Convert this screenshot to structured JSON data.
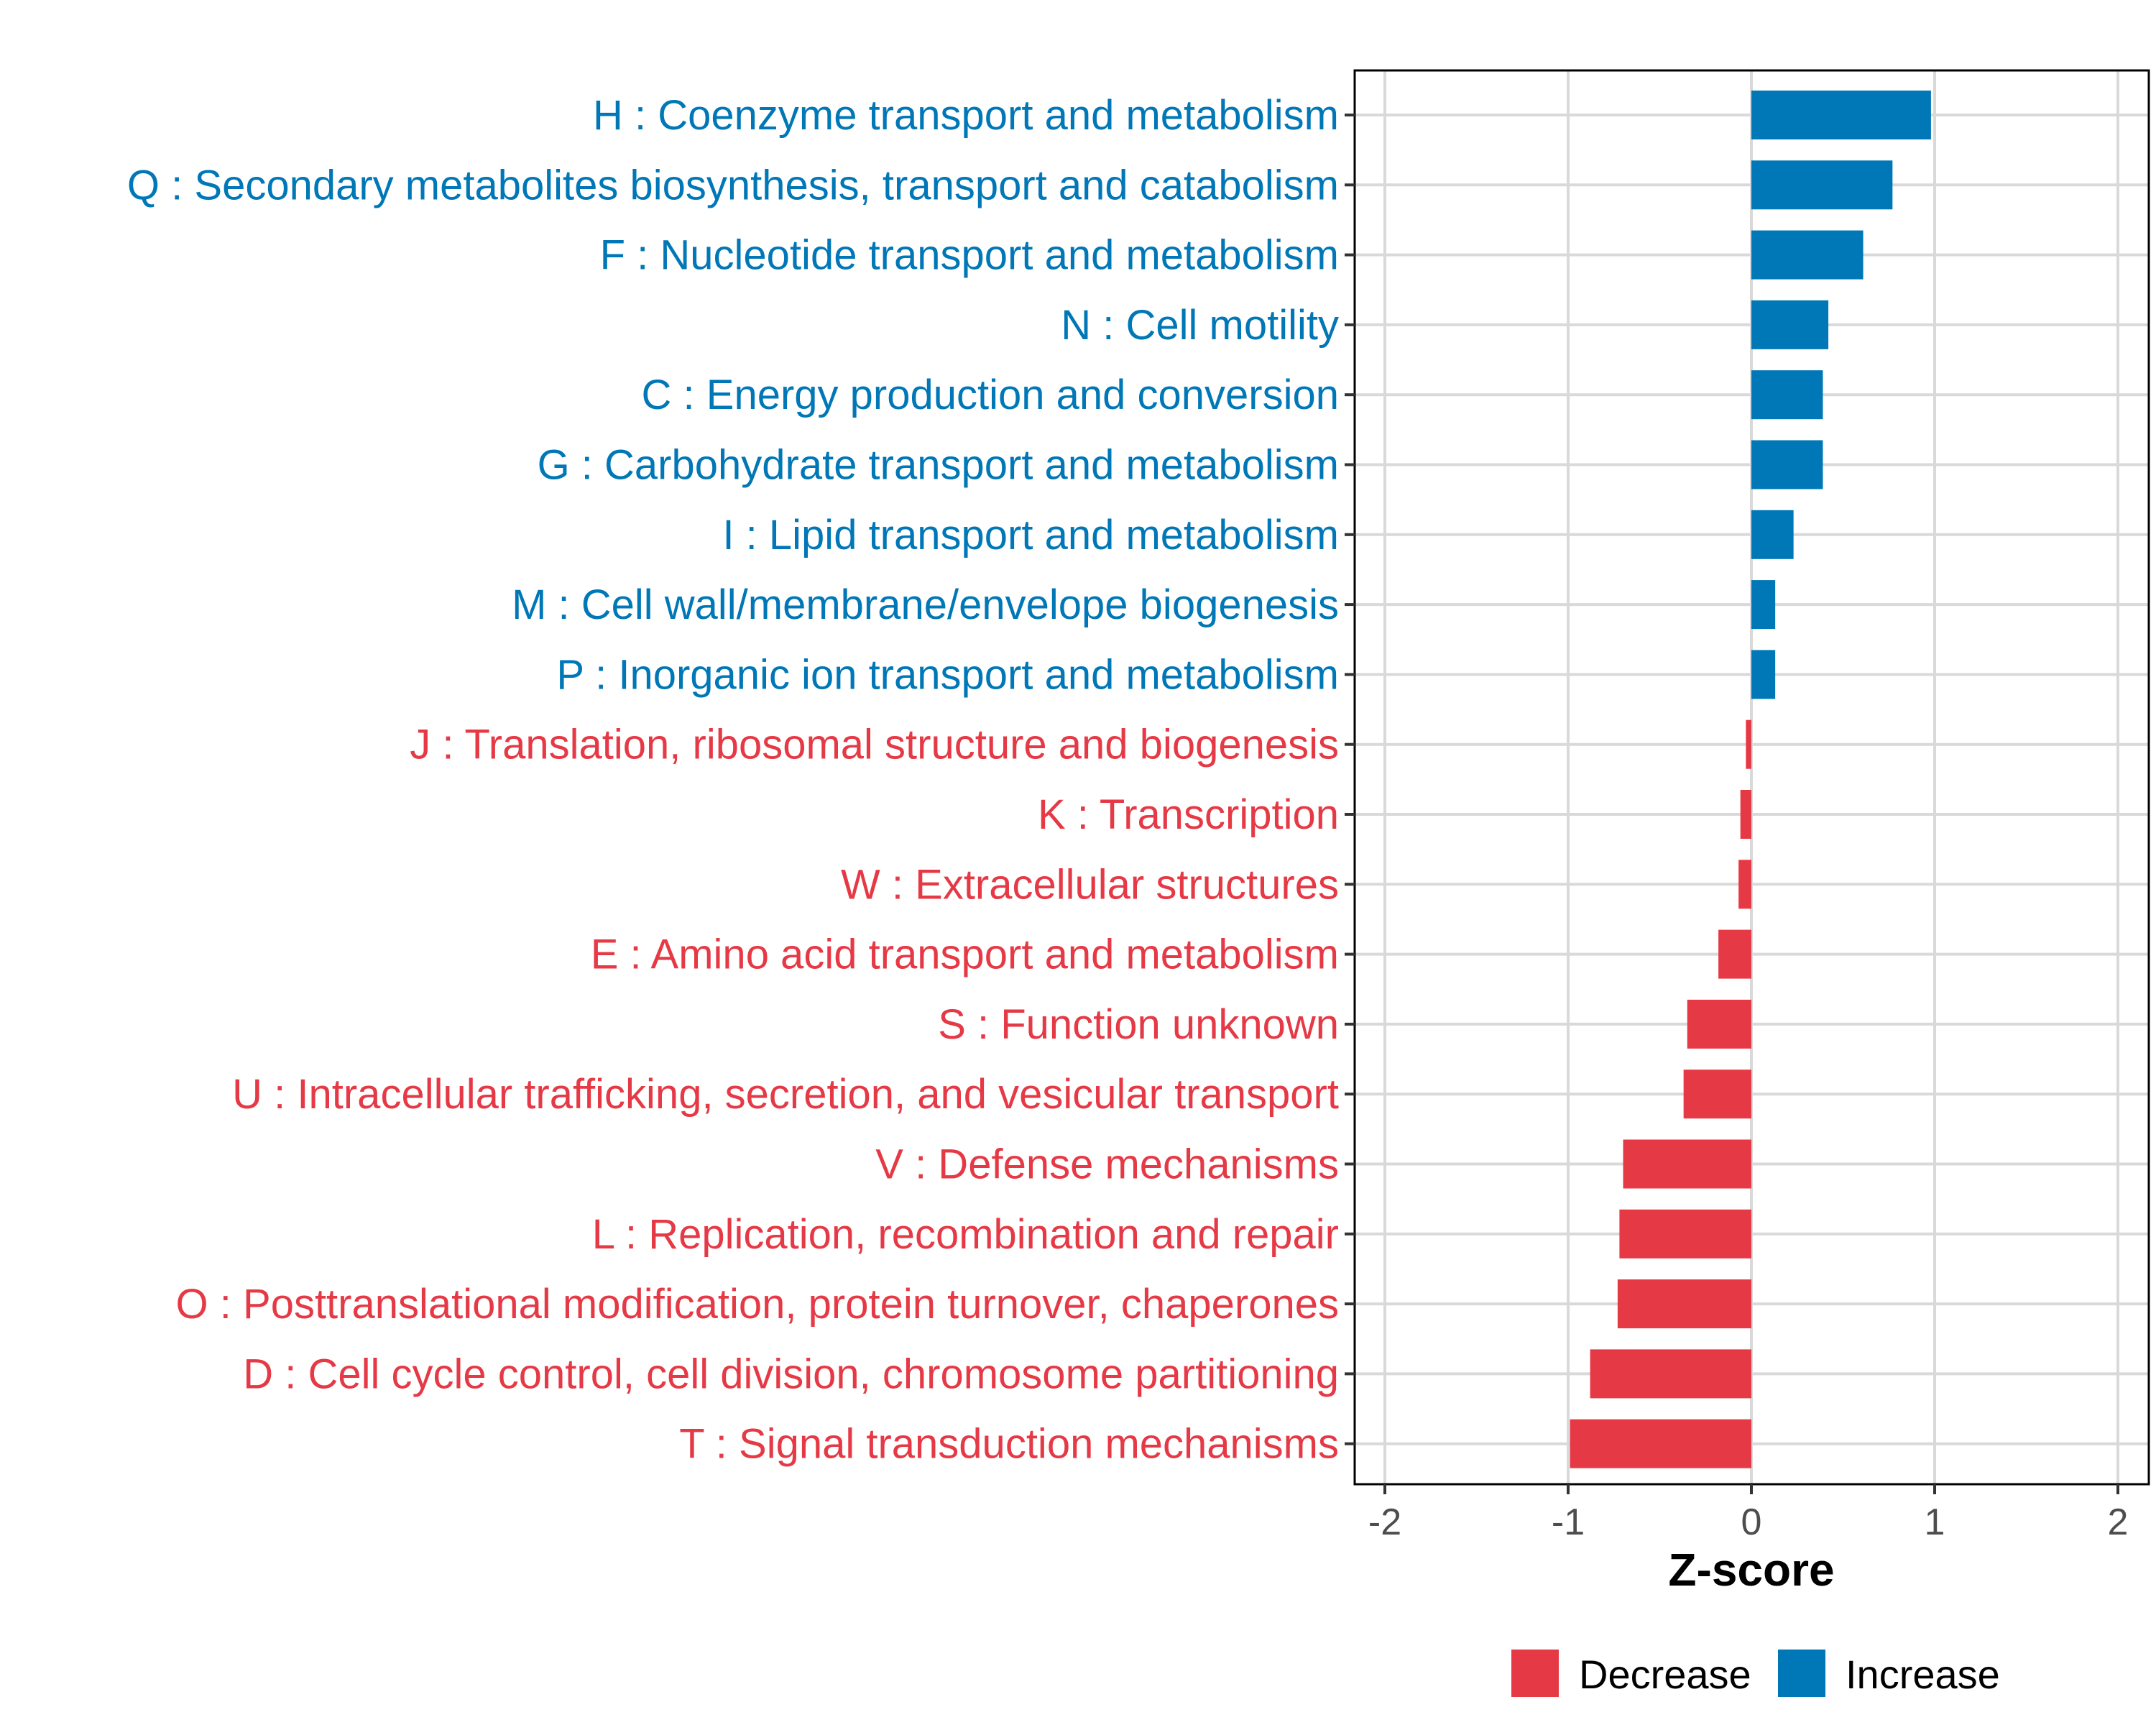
{
  "chart_data": {
    "type": "bar",
    "orientation": "horizontal",
    "title": "",
    "xlabel": "Z-score",
    "ylabel": "",
    "xlim": [
      -2.2,
      2.2
    ],
    "xticks": [
      -2,
      -1,
      0,
      1,
      2
    ],
    "xtick_labels": [
      "-2",
      "-1",
      "0",
      "1",
      "2"
    ],
    "grid": true,
    "colors": {
      "Decrease": "#e63946",
      "Increase": "#0077b6"
    },
    "legend": {
      "placement": "bottom-right",
      "entries": [
        {
          "label": "Decrease",
          "color": "#e63946"
        },
        {
          "label": "Increase",
          "color": "#0077b6"
        }
      ]
    },
    "categories": [
      "H : Coenzyme transport and metabolism",
      "Q : Secondary metabolites biosynthesis, transport and catabolism",
      "F : Nucleotide transport and metabolism",
      "N : Cell motility",
      "C : Energy production and conversion",
      "G : Carbohydrate transport and metabolism",
      "I : Lipid transport and metabolism",
      "M : Cell wall/membrane/envelope biogenesis",
      "P : Inorganic ion transport and metabolism",
      "J : Translation, ribosomal structure and biogenesis",
      "K : Transcription",
      "W : Extracellular structures",
      "E : Amino acid transport and metabolism",
      "S : Function unknown",
      "U : Intracellular trafficking, secretion, and vesicular transport",
      "V : Defense mechanisms",
      "L : Replication, recombination and repair",
      "O : Posttranslational modification, protein turnover, chaperones",
      "D : Cell cycle control, cell division, chromosome partitioning",
      "T : Signal transduction mechanisms"
    ],
    "values": [
      0.98,
      0.77,
      0.61,
      0.42,
      0.39,
      0.39,
      0.23,
      0.13,
      0.13,
      -0.03,
      -0.06,
      -0.07,
      -0.18,
      -0.35,
      -0.37,
      -0.7,
      -0.72,
      -0.73,
      -0.88,
      -0.99
    ],
    "groups": [
      "Increase",
      "Increase",
      "Increase",
      "Increase",
      "Increase",
      "Increase",
      "Increase",
      "Increase",
      "Increase",
      "Decrease",
      "Decrease",
      "Decrease",
      "Decrease",
      "Decrease",
      "Decrease",
      "Decrease",
      "Decrease",
      "Decrease",
      "Decrease",
      "Decrease"
    ]
  }
}
